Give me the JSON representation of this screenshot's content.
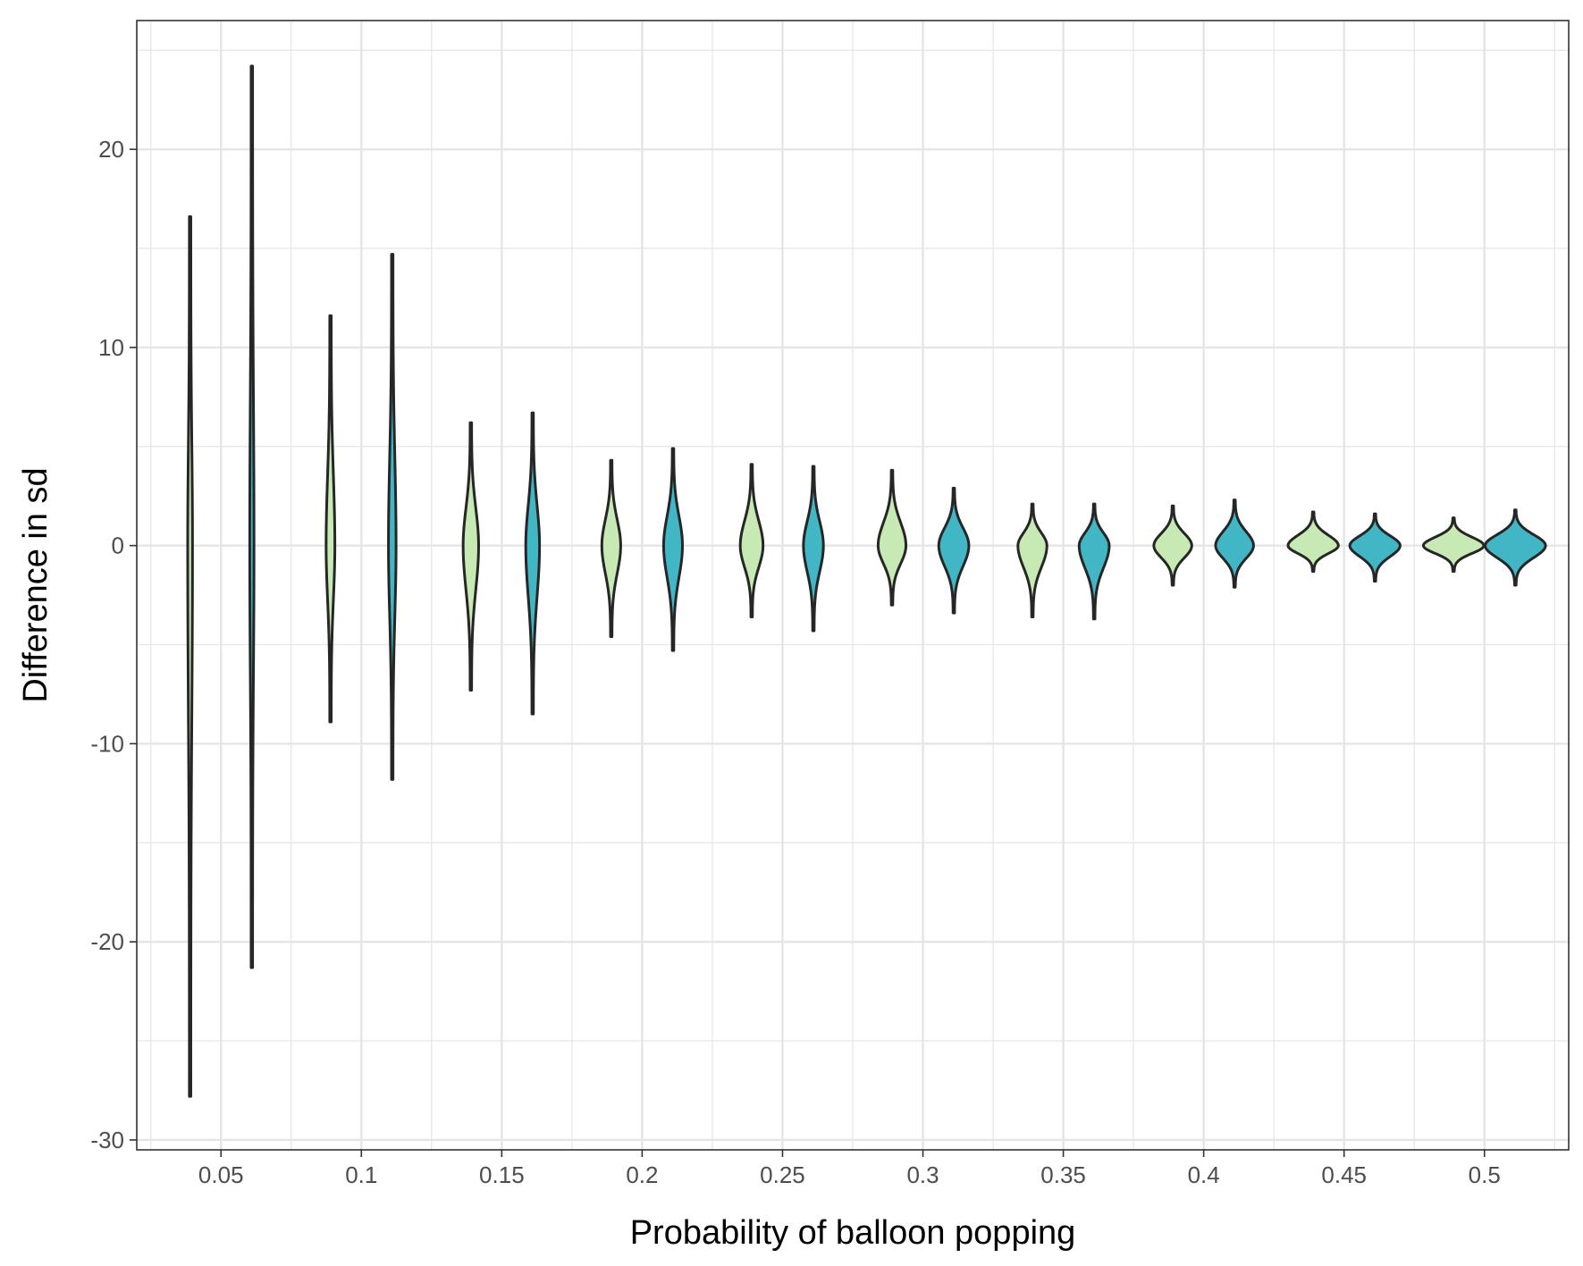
{
  "chart_data": {
    "type": "violin",
    "xlabel": "Probability of balloon popping",
    "ylabel": "Difference in sd",
    "xlim": [
      0.02,
      0.53
    ],
    "ylim": [
      -30.5,
      26.5
    ],
    "x_ticks": [
      {
        "value": 0.05,
        "label": "0.05"
      },
      {
        "value": 0.1,
        "label": "0.1"
      },
      {
        "value": 0.15,
        "label": "0.15"
      },
      {
        "value": 0.2,
        "label": "0.2"
      },
      {
        "value": 0.25,
        "label": "0.25"
      },
      {
        "value": 0.3,
        "label": "0.3"
      },
      {
        "value": 0.35,
        "label": "0.35"
      },
      {
        "value": 0.4,
        "label": "0.4"
      },
      {
        "value": 0.45,
        "label": "0.45"
      },
      {
        "value": 0.5,
        "label": "0.5"
      }
    ],
    "y_ticks": [
      {
        "value": 20,
        "label": "20"
      },
      {
        "value": 10,
        "label": "10"
      },
      {
        "value": 0,
        "label": "0"
      },
      {
        "value": -10,
        "label": "-10"
      },
      {
        "value": -20,
        "label": "-20"
      },
      {
        "value": -30,
        "label": "-30"
      }
    ],
    "grid": true,
    "legend": "none",
    "colors": {
      "light": "#c7e9b4",
      "teal": "#41b6c4",
      "outline": "#262626",
      "grid": "#e5e5e5"
    },
    "violins": [
      {
        "x": 0.039,
        "fill": "light",
        "max": 16.6,
        "min": -27.8,
        "max_halfwidth": 0.0006
      },
      {
        "x": 0.061,
        "fill": "teal",
        "max": 24.2,
        "min": -21.3,
        "max_halfwidth": 0.0005
      },
      {
        "x": 0.089,
        "fill": "light",
        "max": 11.6,
        "min": -8.9,
        "max_halfwidth": 0.0013
      },
      {
        "x": 0.111,
        "fill": "teal",
        "max": 14.7,
        "min": -11.8,
        "max_halfwidth": 0.0011
      },
      {
        "x": 0.139,
        "fill": "light",
        "max": 6.2,
        "min": -7.3,
        "max_halfwidth": 0.0025
      },
      {
        "x": 0.161,
        "fill": "teal",
        "max": 6.7,
        "min": -8.5,
        "max_halfwidth": 0.0022
      },
      {
        "x": 0.189,
        "fill": "light",
        "max": 4.3,
        "min": -4.6,
        "max_halfwidth": 0.0031
      },
      {
        "x": 0.211,
        "fill": "teal",
        "max": 4.9,
        "min": -5.3,
        "max_halfwidth": 0.0031
      },
      {
        "x": 0.239,
        "fill": "light",
        "max": 4.1,
        "min": -3.6,
        "max_halfwidth": 0.0038
      },
      {
        "x": 0.261,
        "fill": "teal",
        "max": 4.0,
        "min": -4.3,
        "max_halfwidth": 0.0033
      },
      {
        "x": 0.289,
        "fill": "light",
        "max": 3.8,
        "min": -3.0,
        "max_halfwidth": 0.0047
      },
      {
        "x": 0.311,
        "fill": "teal",
        "max": 2.9,
        "min": -3.4,
        "max_halfwidth": 0.0051
      },
      {
        "x": 0.339,
        "fill": "light",
        "max": 2.1,
        "min": -3.6,
        "max_halfwidth": 0.0049
      },
      {
        "x": 0.361,
        "fill": "teal",
        "max": 2.1,
        "min": -3.7,
        "max_halfwidth": 0.0051
      },
      {
        "x": 0.389,
        "fill": "light",
        "max": 2.0,
        "min": -2.0,
        "max_halfwidth": 0.0065
      },
      {
        "x": 0.411,
        "fill": "teal",
        "max": 2.3,
        "min": -2.1,
        "max_halfwidth": 0.0065
      },
      {
        "x": 0.439,
        "fill": "light",
        "max": 1.7,
        "min": -1.3,
        "max_halfwidth": 0.0087
      },
      {
        "x": 0.461,
        "fill": "teal",
        "max": 1.6,
        "min": -1.8,
        "max_halfwidth": 0.0087
      },
      {
        "x": 0.489,
        "fill": "light",
        "max": 1.4,
        "min": -1.3,
        "max_halfwidth": 0.0105
      },
      {
        "x": 0.511,
        "fill": "teal",
        "max": 1.8,
        "min": -2.0,
        "max_halfwidth": 0.0105
      }
    ]
  }
}
